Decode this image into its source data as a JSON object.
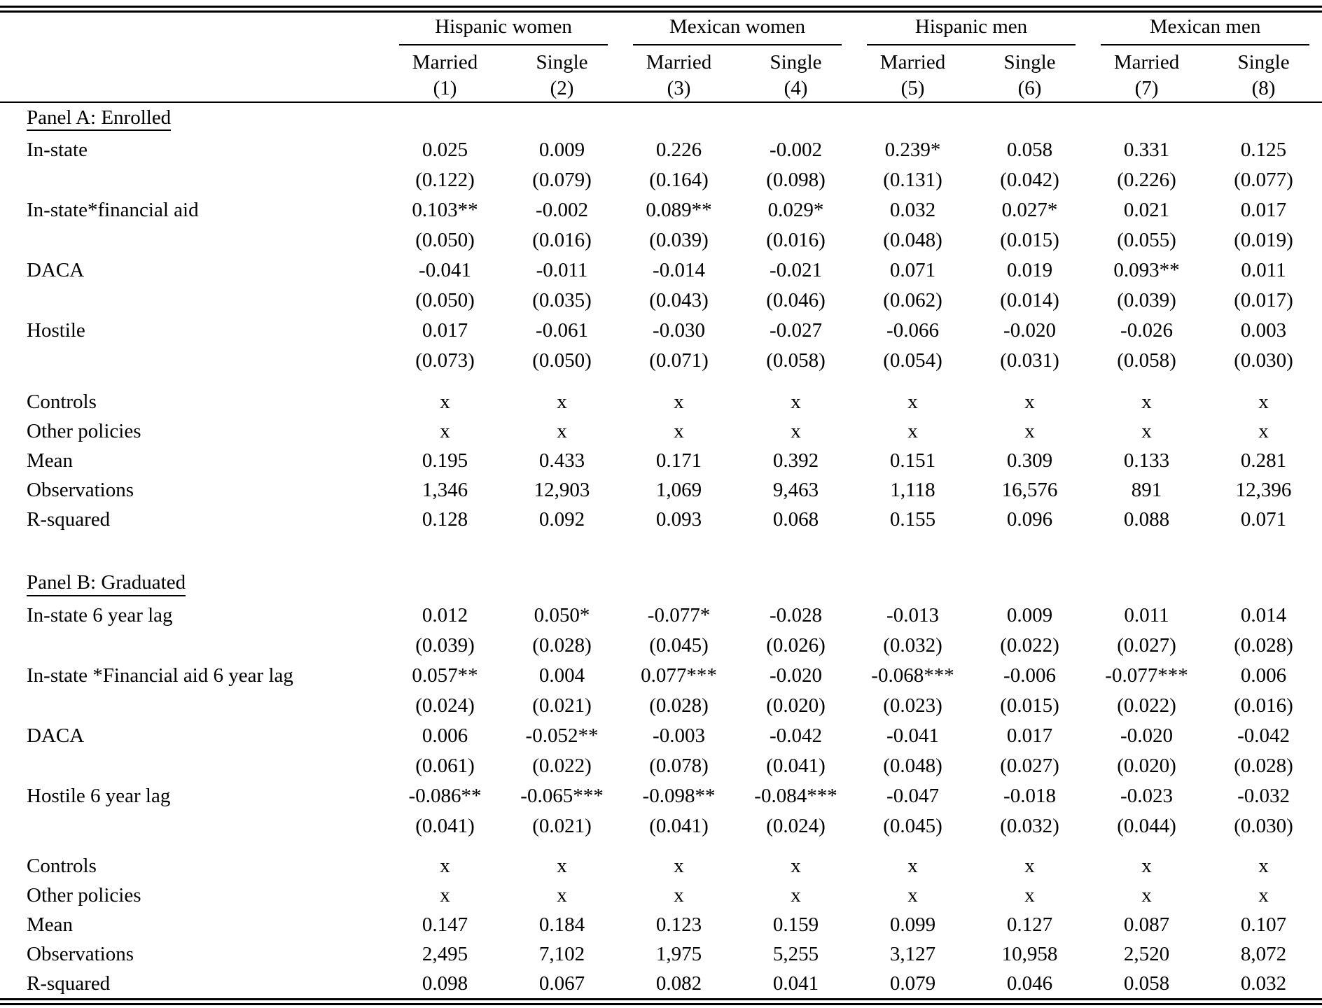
{
  "table": {
    "groups": [
      "Hispanic women",
      "Mexican women",
      "Hispanic men",
      "Mexican men"
    ],
    "subheaders": [
      "Married",
      "Single",
      "Married",
      "Single",
      "Married",
      "Single",
      "Married",
      "Single"
    ],
    "col_numbers": [
      "(1)",
      "(2)",
      "(3)",
      "(4)",
      "(5)",
      "(6)",
      "(7)",
      "(8)"
    ],
    "panels": [
      {
        "title": "Panel A: Enrolled",
        "coef_rows": [
          {
            "label": "In-state",
            "est": [
              "0.025",
              "0.009",
              "0.226",
              "-0.002",
              "0.239*",
              "0.058",
              "0.331",
              "0.125"
            ],
            "se": [
              "(0.122)",
              "(0.079)",
              "(0.164)",
              "(0.098)",
              "(0.131)",
              "(0.042)",
              "(0.226)",
              "(0.077)"
            ]
          },
          {
            "label": "In-state*financial aid",
            "est": [
              "0.103**",
              "-0.002",
              "0.089**",
              "0.029*",
              "0.032",
              "0.027*",
              "0.021",
              "0.017"
            ],
            "se": [
              "(0.050)",
              "(0.016)",
              "(0.039)",
              "(0.016)",
              "(0.048)",
              "(0.015)",
              "(0.055)",
              "(0.019)"
            ]
          },
          {
            "label": "DACA",
            "est": [
              "-0.041",
              "-0.011",
              "-0.014",
              "-0.021",
              "0.071",
              "0.019",
              "0.093**",
              "0.011"
            ],
            "se": [
              "(0.050)",
              "(0.035)",
              "(0.043)",
              "(0.046)",
              "(0.062)",
              "(0.014)",
              "(0.039)",
              "(0.017)"
            ]
          },
          {
            "label": "Hostile",
            "est": [
              "0.017",
              "-0.061",
              "-0.030",
              "-0.027",
              "-0.066",
              "-0.020",
              "-0.026",
              "0.003"
            ],
            "se": [
              "(0.073)",
              "(0.050)",
              "(0.071)",
              "(0.058)",
              "(0.054)",
              "(0.031)",
              "(0.058)",
              "(0.030)"
            ]
          }
        ],
        "stat_rows": [
          {
            "label": "Controls",
            "values": [
              "x",
              "x",
              "x",
              "x",
              "x",
              "x",
              "x",
              "x"
            ]
          },
          {
            "label": "Other policies",
            "values": [
              "x",
              "x",
              "x",
              "x",
              "x",
              "x",
              "x",
              "x"
            ]
          },
          {
            "label": "Mean",
            "values": [
              "0.195",
              "0.433",
              "0.171",
              "0.392",
              "0.151",
              "0.309",
              "0.133",
              "0.281"
            ]
          },
          {
            "label": "Observations",
            "values": [
              "1,346",
              "12,903",
              "1,069",
              "9,463",
              "1,118",
              "16,576",
              "891",
              "12,396"
            ]
          },
          {
            "label": "R-squared",
            "values": [
              "0.128",
              "0.092",
              "0.093",
              "0.068",
              "0.155",
              "0.096",
              "0.088",
              "0.071"
            ]
          }
        ]
      },
      {
        "title": "Panel B: Graduated",
        "coef_rows": [
          {
            "label": "In-state 6 year lag",
            "est": [
              "0.012",
              "0.050*",
              "-0.077*",
              "-0.028",
              "-0.013",
              "0.009",
              "0.011",
              "0.014"
            ],
            "se": [
              "(0.039)",
              "(0.028)",
              "(0.045)",
              "(0.026)",
              "(0.032)",
              "(0.022)",
              "(0.027)",
              "(0.028)"
            ]
          },
          {
            "label": "In-state *Financial aid 6 year lag",
            "est": [
              "0.057**",
              "0.004",
              "0.077***",
              "-0.020",
              "-0.068***",
              "-0.006",
              "-0.077***",
              "0.006"
            ],
            "se": [
              "(0.024)",
              "(0.021)",
              "(0.028)",
              "(0.020)",
              "(0.023)",
              "(0.015)",
              "(0.022)",
              "(0.016)"
            ]
          },
          {
            "label": "DACA",
            "est": [
              "0.006",
              "-0.052**",
              "-0.003",
              "-0.042",
              "-0.041",
              "0.017",
              "-0.020",
              "-0.042"
            ],
            "se": [
              "(0.061)",
              "(0.022)",
              "(0.078)",
              "(0.041)",
              "(0.048)",
              "(0.027)",
              "(0.020)",
              "(0.028)"
            ]
          },
          {
            "label": "Hostile 6 year lag",
            "est": [
              "-0.086**",
              "-0.065***",
              "-0.098**",
              "-0.084***",
              "-0.047",
              "-0.018",
              "-0.023",
              "-0.032"
            ],
            "se": [
              "(0.041)",
              "(0.021)",
              "(0.041)",
              "(0.024)",
              "(0.045)",
              "(0.032)",
              "(0.044)",
              "(0.030)"
            ]
          }
        ],
        "stat_rows": [
          {
            "label": "Controls",
            "values": [
              "x",
              "x",
              "x",
              "x",
              "x",
              "x",
              "x",
              "x"
            ]
          },
          {
            "label": "Other policies",
            "values": [
              "x",
              "x",
              "x",
              "x",
              "x",
              "x",
              "x",
              "x"
            ]
          },
          {
            "label": "Mean",
            "values": [
              "0.147",
              "0.184",
              "0.123",
              "0.159",
              "0.099",
              "0.127",
              "0.087",
              "0.107"
            ]
          },
          {
            "label": "Observations",
            "values": [
              "2,495",
              "7,102",
              "1,975",
              "5,255",
              "3,127",
              "10,958",
              "2,520",
              "8,072"
            ]
          },
          {
            "label": "R-squared",
            "values": [
              "0.098",
              "0.067",
              "0.082",
              "0.041",
              "0.079",
              "0.046",
              "0.058",
              "0.032"
            ]
          }
        ]
      }
    ]
  }
}
